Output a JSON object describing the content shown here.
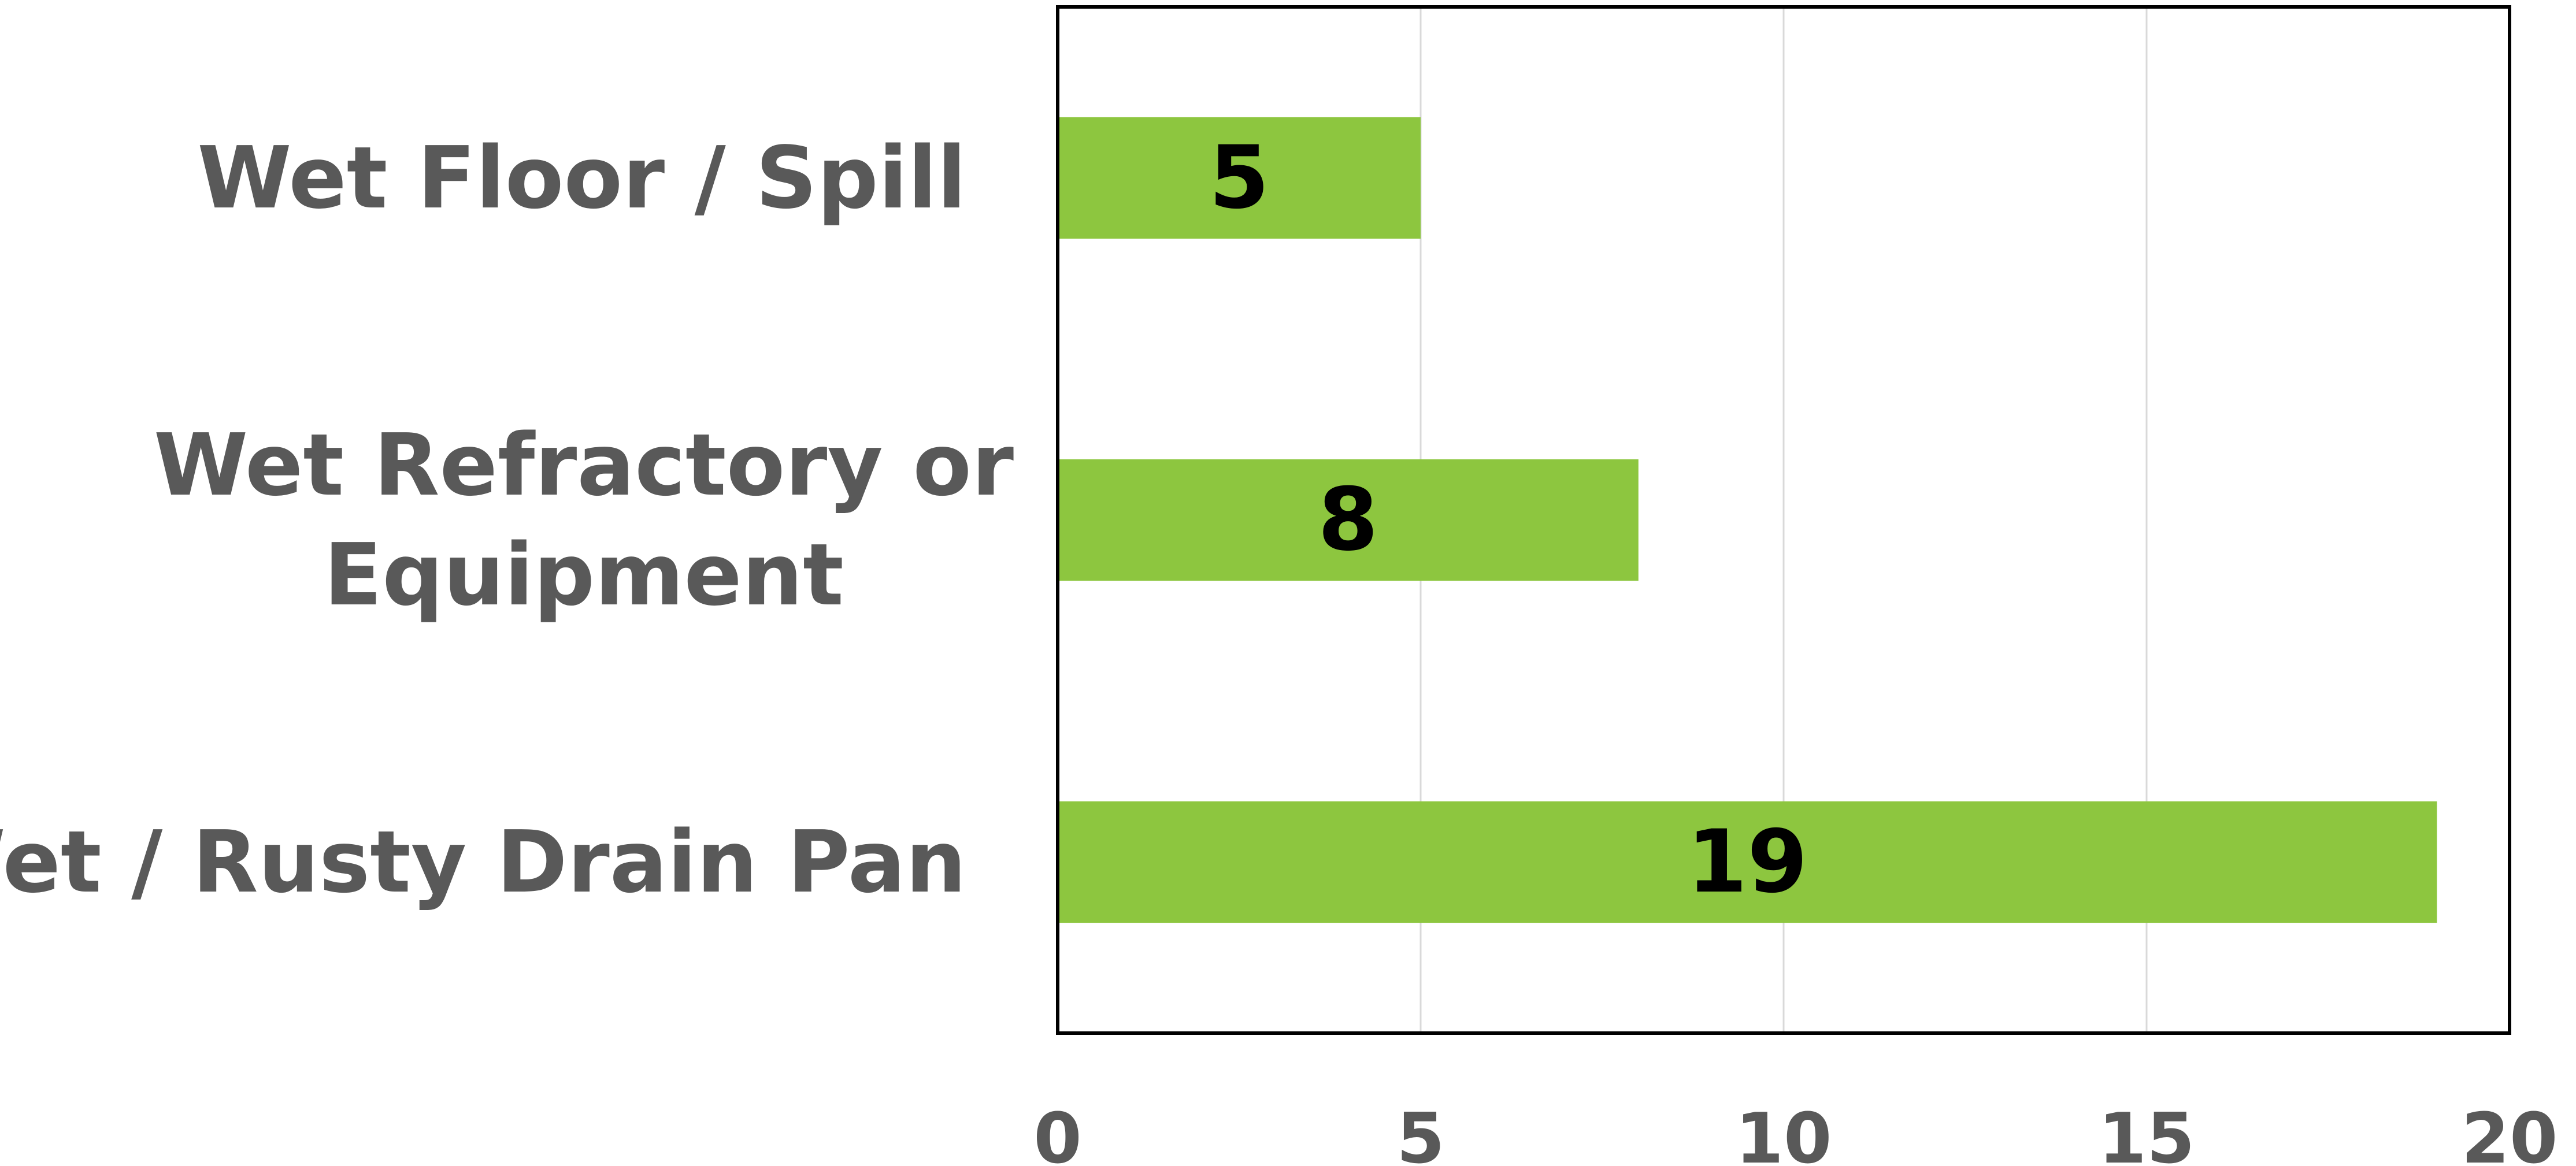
{
  "chart_data": {
    "type": "bar",
    "orientation": "horizontal",
    "categories": [
      [
        "Wet Floor / Spill"
      ],
      [
        "Wet Refractory or",
        "Equipment"
      ],
      [
        "Wet / Rusty Drain Pan"
      ]
    ],
    "values": [
      5,
      8,
      19
    ],
    "data_labels": [
      "5",
      "8",
      "19"
    ],
    "xlim": [
      0,
      20
    ],
    "xticks": [
      0,
      5,
      10,
      15,
      20
    ],
    "title": "",
    "xlabel": "",
    "ylabel": "",
    "grid": true,
    "legend": "none",
    "bar_color": "#8DC63F",
    "grid_color": "#D9D9D9",
    "axis_color": "#000000"
  }
}
